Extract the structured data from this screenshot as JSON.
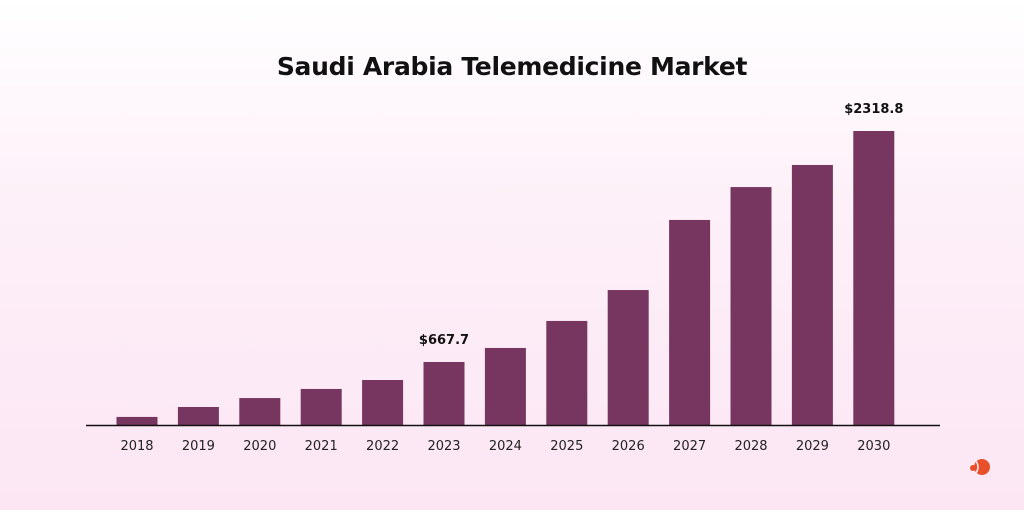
{
  "chart_data": {
    "type": "bar",
    "title": "Saudi Arabia Telemedicine Market",
    "xlabel": "",
    "ylabel": "",
    "categories": [
      "2018",
      "2019",
      "2020",
      "2021",
      "2022",
      "2023",
      "2024",
      "2025",
      "2026",
      "2027",
      "2028",
      "2029",
      "2030"
    ],
    "values": [
      275,
      346,
      410,
      475,
      539,
      667.7,
      768,
      961,
      1182,
      1683,
      1918,
      2076,
      2318.8
    ],
    "data_labels": {
      "2023": "$667.7",
      "2030": "$2318.8"
    },
    "grid": false,
    "bar_color": "#763660"
  },
  "brand": {
    "logo_color": "#e8502a"
  }
}
